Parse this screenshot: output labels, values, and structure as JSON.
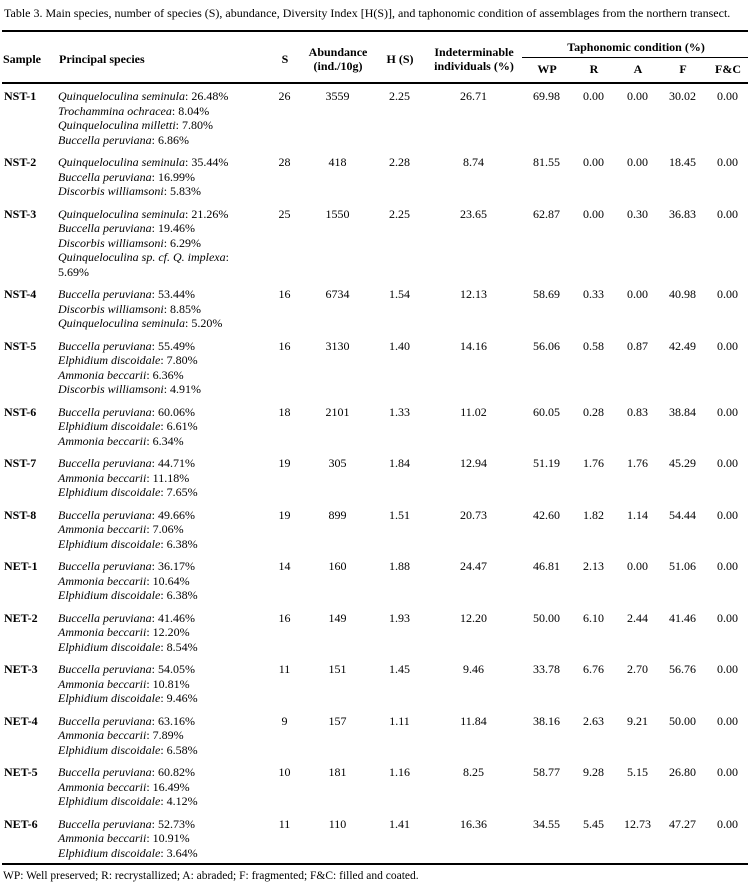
{
  "caption": "Table 3. Main species, number of species (S), abundance, Diversity Index [H(S)], and taphonomic condition of assemblages from the northern transect.",
  "header": {
    "sample": "Sample",
    "principal_species": "Principal species",
    "s": "S",
    "abundance": "Abundance (ind./10g)",
    "h_s": "H (S)",
    "indeterminable": "Indeterminable individuals (%)",
    "taphonomic_group": "Taphonomic condition (%)",
    "taphonomic_cols": [
      "WP",
      "R",
      "A",
      "F",
      "F&C"
    ]
  },
  "rows": [
    {
      "sample": "NST-1",
      "species": [
        {
          "name": "Quinqueloculina seminula",
          "pct": "26.48%"
        },
        {
          "name": "Trochammina ochracea",
          "pct": "8.04%"
        },
        {
          "name": "Quinqueloculina milletti",
          "pct": "7.80%"
        },
        {
          "name": "Buccella peruviana",
          "pct": "6.86%"
        }
      ],
      "s": "26",
      "abundance": "3559",
      "h": "2.25",
      "indet": "26.71",
      "wp": "69.98",
      "r": "0.00",
      "a": "0.00",
      "f": "30.02",
      "fc": "0.00"
    },
    {
      "sample": "NST-2",
      "species": [
        {
          "name": "Quinqueloculina seminula",
          "pct": "35.44%"
        },
        {
          "name": "Buccella peruviana",
          "pct": "16.99%"
        },
        {
          "name": "Discorbis williamsoni",
          "pct": "5.83%"
        }
      ],
      "s": "28",
      "abundance": "418",
      "h": "2.28",
      "indet": "8.74",
      "wp": "81.55",
      "r": "0.00",
      "a": "0.00",
      "f": "18.45",
      "fc": "0.00"
    },
    {
      "sample": "NST-3",
      "species": [
        {
          "name": "Quinqueloculina seminula",
          "pct": "21.26%"
        },
        {
          "name": "Buccella peruviana",
          "pct": "19.46%"
        },
        {
          "name": "Discorbis williamsoni",
          "pct": "6.29%"
        },
        {
          "name": "Quinqueloculina sp. cf. Q. implexa",
          "pct": "5.69%"
        }
      ],
      "s": "25",
      "abundance": "1550",
      "h": "2.25",
      "indet": "23.65",
      "wp": "62.87",
      "r": "0.00",
      "a": "0.30",
      "f": "36.83",
      "fc": "0.00"
    },
    {
      "sample": "NST-4",
      "species": [
        {
          "name": "Buccella peruviana",
          "pct": "53.44%"
        },
        {
          "name": "Discorbis williamsoni",
          "pct": "8.85%"
        },
        {
          "name": "Quinqueloculina seminula",
          "pct": "5.20%"
        }
      ],
      "s": "16",
      "abundance": "6734",
      "h": "1.54",
      "indet": "12.13",
      "wp": "58.69",
      "r": "0.33",
      "a": "0.00",
      "f": "40.98",
      "fc": "0.00"
    },
    {
      "sample": "NST-5",
      "species": [
        {
          "name": "Buccella peruviana",
          "pct": "55.49%"
        },
        {
          "name": "Elphidium discoidale",
          "pct": "7.80%"
        },
        {
          "name": "Ammonia beccarii",
          "pct": "6.36%"
        },
        {
          "name": "Discorbis williamsoni",
          "pct": "4.91%"
        }
      ],
      "s": "16",
      "abundance": "3130",
      "h": "1.40",
      "indet": "14.16",
      "wp": "56.06",
      "r": "0.58",
      "a": "0.87",
      "f": "42.49",
      "fc": "0.00"
    },
    {
      "sample": "NST-6",
      "species": [
        {
          "name": "Buccella peruviana",
          "pct": "60.06%"
        },
        {
          "name": "Elphidium discoidale",
          "pct": "6.61%"
        },
        {
          "name": "Ammonia beccarii",
          "pct": "6.34%"
        }
      ],
      "s": "18",
      "abundance": "2101",
      "h": "1.33",
      "indet": "11.02",
      "wp": "60.05",
      "r": "0.28",
      "a": "0.83",
      "f": "38.84",
      "fc": "0.00"
    },
    {
      "sample": "NST-7",
      "species": [
        {
          "name": "Buccella peruviana",
          "pct": "44.71%"
        },
        {
          "name": "Ammonia beccarii",
          "pct": "11.18%"
        },
        {
          "name": "Elphidium discoidale",
          "pct": "7.65%"
        }
      ],
      "s": "19",
      "abundance": "305",
      "h": "1.84",
      "indet": "12.94",
      "wp": "51.19",
      "r": "1.76",
      "a": "1.76",
      "f": "45.29",
      "fc": "0.00"
    },
    {
      "sample": "NST-8",
      "species": [
        {
          "name": "Buccella peruviana",
          "pct": "49.66%"
        },
        {
          "name": "Ammonia beccarii",
          "pct": "7.06%"
        },
        {
          "name": "Elphidium discoidale",
          "pct": "6.38%"
        }
      ],
      "s": "19",
      "abundance": "899",
      "h": "1.51",
      "indet": "20.73",
      "wp": "42.60",
      "r": "1.82",
      "a": "1.14",
      "f": "54.44",
      "fc": "0.00"
    },
    {
      "sample": "NET-1",
      "species": [
        {
          "name": "Buccella peruviana",
          "pct": "36.17%"
        },
        {
          "name": "Ammonia beccarii",
          "pct": "10.64%"
        },
        {
          "name": "Elphidium discoidale",
          "pct": "6.38%"
        }
      ],
      "s": "14",
      "abundance": "160",
      "h": "1.88",
      "indet": "24.47",
      "wp": "46.81",
      "r": "2.13",
      "a": "0.00",
      "f": "51.06",
      "fc": "0.00"
    },
    {
      "sample": "NET-2",
      "species": [
        {
          "name": "Buccella peruviana",
          "pct": "41.46%"
        },
        {
          "name": "Ammonia beccarii",
          "pct": "12.20%"
        },
        {
          "name": "Elphidium discoidale",
          "pct": "8.54%"
        }
      ],
      "s": "16",
      "abundance": "149",
      "h": "1.93",
      "indet": "12.20",
      "wp": "50.00",
      "r": "6.10",
      "a": "2.44",
      "f": "41.46",
      "fc": "0.00"
    },
    {
      "sample": "NET-3",
      "species": [
        {
          "name": "Buccella peruviana",
          "pct": "54.05%"
        },
        {
          "name": "Ammonia beccarii",
          "pct": "10.81%"
        },
        {
          "name": "Elphidium discoidale",
          "pct": "9.46%"
        }
      ],
      "s": "11",
      "abundance": "151",
      "h": "1.45",
      "indet": "9.46",
      "wp": "33.78",
      "r": "6.76",
      "a": "2.70",
      "f": "56.76",
      "fc": "0.00"
    },
    {
      "sample": "NET-4",
      "species": [
        {
          "name": "Buccella peruviana",
          "pct": "63.16%"
        },
        {
          "name": "Ammonia beccarii",
          "pct": "7.89%"
        },
        {
          "name": "Elphidium discoidale",
          "pct": "6.58%"
        }
      ],
      "s": "9",
      "abundance": "157",
      "h": "1.11",
      "indet": "11.84",
      "wp": "38.16",
      "r": "2.63",
      "a": "9.21",
      "f": "50.00",
      "fc": "0.00"
    },
    {
      "sample": "NET-5",
      "species": [
        {
          "name": "Buccella peruviana",
          "pct": "60.82%"
        },
        {
          "name": "Ammonia beccarii",
          "pct": "16.49%"
        },
        {
          "name": "Elphidium discoidale",
          "pct": "4.12%"
        }
      ],
      "s": "10",
      "abundance": "181",
      "h": "1.16",
      "indet": "8.25",
      "wp": "58.77",
      "r": "9.28",
      "a": "5.15",
      "f": "26.80",
      "fc": "0.00"
    },
    {
      "sample": "NET-6",
      "species": [
        {
          "name": "Buccella peruviana",
          "pct": "52.73%"
        },
        {
          "name": "Ammonia beccarii",
          "pct": "10.91%"
        },
        {
          "name": "Elphidium discoidale",
          "pct": "3.64%"
        }
      ],
      "s": "11",
      "abundance": "110",
      "h": "1.41",
      "indet": "16.36",
      "wp": "34.55",
      "r": "5.45",
      "a": "12.73",
      "f": "47.27",
      "fc": "0.00"
    }
  ],
  "footnote": "WP: Well preserved; R: recrystallized; A: abraded; F: fragmented; F&C: filled and coated."
}
